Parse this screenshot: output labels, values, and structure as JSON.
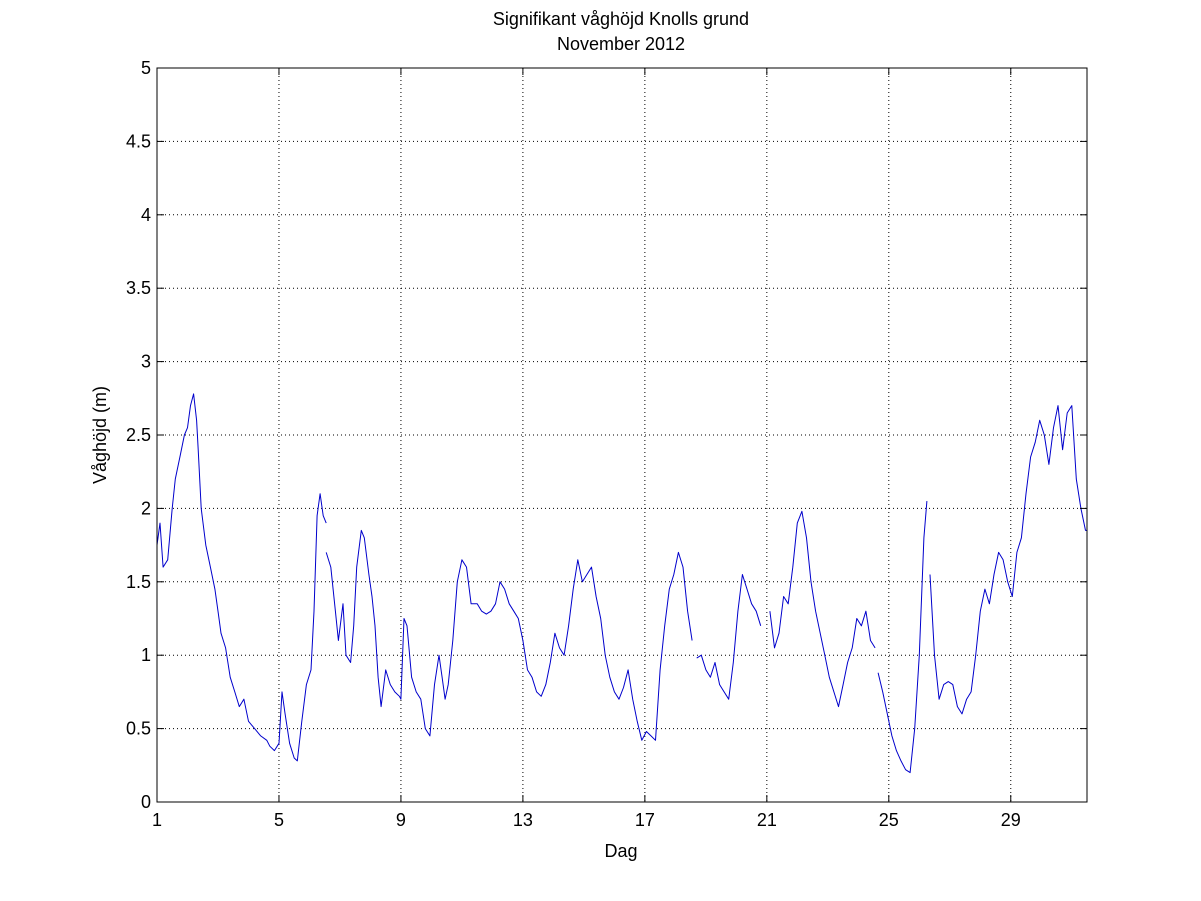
{
  "chart_data": {
    "type": "line",
    "title": "Signifikant våghöjd Knolls grund",
    "subtitle": "November 2012",
    "xlabel": "Dag",
    "ylabel": "Våghöjd (m)",
    "xlim": [
      1,
      31.5
    ],
    "ylim": [
      0,
      5
    ],
    "xticks": [
      1,
      5,
      9,
      13,
      17,
      21,
      25,
      29
    ],
    "xtick_labels": [
      "1",
      "5",
      "9",
      "13",
      "17",
      "21",
      "25",
      "29"
    ],
    "yticks": [
      0,
      0.5,
      1,
      1.5,
      2,
      2.5,
      3,
      3.5,
      4,
      4.5,
      5
    ],
    "ytick_labels": [
      "0",
      "0.5",
      "1",
      "1.5",
      "2",
      "2.5",
      "3",
      "3.5",
      "4",
      "4.5",
      "5"
    ],
    "grid": true,
    "line_color": "#0000cc",
    "series": [
      {
        "segments": [
          {
            "x": [
              1.0,
              1.1,
              1.2,
              1.35,
              1.5,
              1.6,
              1.75,
              1.9,
              2.0,
              2.1,
              2.2,
              2.3,
              2.35,
              2.45,
              2.6,
              2.75,
              2.9,
              3.0,
              3.1,
              3.25,
              3.4,
              3.55,
              3.7,
              3.85,
              4.0,
              4.2,
              4.4,
              4.6,
              4.7,
              4.85,
              5.0,
              5.1,
              5.2,
              5.35,
              5.5,
              5.6,
              5.75,
              5.9,
              6.05,
              6.15,
              6.25,
              6.35,
              6.45,
              6.55
            ],
            "y": [
              1.75,
              1.9,
              1.6,
              1.65,
              2.0,
              2.2,
              2.35,
              2.5,
              2.55,
              2.7,
              2.78,
              2.6,
              2.4,
              2.0,
              1.75,
              1.6,
              1.45,
              1.3,
              1.15,
              1.05,
              0.85,
              0.75,
              0.65,
              0.7,
              0.55,
              0.5,
              0.45,
              0.42,
              0.38,
              0.35,
              0.4,
              0.75,
              0.6,
              0.4,
              0.3,
              0.28,
              0.55,
              0.8,
              0.9,
              1.3,
              1.95,
              2.1,
              1.95,
              1.9
            ]
          },
          {
            "x": [
              6.55,
              6.7,
              6.85,
              6.95,
              7.1,
              7.2,
              7.35,
              7.45,
              7.55,
              7.7,
              7.8,
              7.95,
              8.05,
              8.15,
              8.25,
              8.35,
              8.5,
              8.65,
              8.8,
              8.95,
              9.0,
              9.1,
              9.2,
              9.35,
              9.5,
              9.65,
              9.8,
              9.95,
              10.1,
              10.25,
              10.35,
              10.45,
              10.55,
              10.7,
              10.85,
              11.0,
              11.15,
              11.3,
              11.5,
              11.65,
              11.8,
              11.95,
              12.1,
              12.25,
              12.4,
              12.55,
              12.7,
              12.85,
              13.0,
              13.15,
              13.3,
              13.45,
              13.6,
              13.75,
              13.9,
              14.05,
              14.2,
              14.35,
              14.5,
              14.65,
              14.8,
              14.95,
              15.1,
              15.25,
              15.4,
              15.55,
              15.7,
              15.85,
              16.0,
              16.15,
              16.3,
              16.45,
              16.6,
              16.75,
              16.9,
              17.05,
              17.2,
              17.35,
              17.5,
              17.65,
              17.8,
              17.95,
              18.1,
              18.25,
              18.4,
              18.55
            ],
            "y": [
              1.7,
              1.6,
              1.3,
              1.1,
              1.35,
              1.0,
              0.95,
              1.2,
              1.6,
              1.85,
              1.8,
              1.55,
              1.4,
              1.2,
              0.85,
              0.65,
              0.9,
              0.8,
              0.75,
              0.72,
              0.7,
              1.25,
              1.2,
              0.85,
              0.75,
              0.7,
              0.5,
              0.45,
              0.8,
              1.0,
              0.85,
              0.7,
              0.8,
              1.1,
              1.5,
              1.65,
              1.6,
              1.35,
              1.35,
              1.3,
              1.28,
              1.3,
              1.35,
              1.5,
              1.45,
              1.35,
              1.3,
              1.25,
              1.1,
              0.9,
              0.85,
              0.75,
              0.72,
              0.8,
              0.95,
              1.15,
              1.05,
              1.0,
              1.2,
              1.45,
              1.65,
              1.5,
              1.55,
              1.6,
              1.4,
              1.25,
              1.0,
              0.85,
              0.75,
              0.7,
              0.78,
              0.9,
              0.7,
              0.55,
              0.42,
              0.48,
              0.45,
              0.42,
              0.9,
              1.2,
              1.45,
              1.55,
              1.7,
              1.6,
              1.3,
              1.1
            ]
          },
          {
            "x": [
              18.7,
              18.85,
              19.0,
              19.15,
              19.3,
              19.45,
              19.6,
              19.75,
              19.9,
              20.05,
              20.2,
              20.35,
              20.5,
              20.65,
              20.8
            ],
            "y": [
              0.98,
              1.0,
              0.9,
              0.85,
              0.95,
              0.8,
              0.75,
              0.7,
              0.95,
              1.3,
              1.55,
              1.45,
              1.35,
              1.3,
              1.2
            ]
          },
          {
            "x": [
              21.1,
              21.25,
              21.4,
              21.55,
              21.7,
              21.85,
              22.0,
              22.15,
              22.3,
              22.45,
              22.6,
              22.75,
              22.9,
              23.05,
              23.2,
              23.35,
              23.5,
              23.65,
              23.8,
              23.95,
              24.1,
              24.25,
              24.4,
              24.55
            ],
            "y": [
              1.3,
              1.05,
              1.15,
              1.4,
              1.35,
              1.6,
              1.9,
              1.98,
              1.8,
              1.5,
              1.3,
              1.15,
              1.0,
              0.85,
              0.75,
              0.65,
              0.8,
              0.95,
              1.05,
              1.25,
              1.2,
              1.3,
              1.1,
              1.05
            ]
          },
          {
            "x": [
              24.65,
              24.8,
              24.95,
              25.1,
              25.25,
              25.4,
              25.55,
              25.7,
              25.85,
              26.0,
              26.15,
              26.25
            ],
            "y": [
              0.88,
              0.75,
              0.6,
              0.45,
              0.35,
              0.28,
              0.22,
              0.2,
              0.5,
              1.0,
              1.8,
              2.05
            ]
          },
          {
            "x": [
              26.35,
              26.5,
              26.65,
              26.8,
              26.95,
              27.1,
              27.25,
              27.4,
              27.55,
              27.7,
              27.85,
              28.0,
              28.15,
              28.3,
              28.45,
              28.6,
              28.75,
              28.9,
              29.05,
              29.2,
              29.35,
              29.5,
              29.65,
              29.8,
              29.95,
              30.1,
              30.25,
              30.4,
              30.55,
              30.7,
              30.85,
              31.0,
              31.15,
              31.3,
              31.45,
              31.5
            ],
            "y": [
              1.55,
              1.0,
              0.7,
              0.8,
              0.82,
              0.8,
              0.65,
              0.6,
              0.7,
              0.75,
              1.0,
              1.3,
              1.45,
              1.35,
              1.55,
              1.7,
              1.65,
              1.5,
              1.4,
              1.7,
              1.8,
              2.1,
              2.35,
              2.45,
              2.6,
              2.5,
              2.3,
              2.55,
              2.7,
              2.4,
              2.65,
              2.7,
              2.2,
              2.0,
              1.85,
              1.85
            ]
          }
        ]
      }
    ]
  }
}
